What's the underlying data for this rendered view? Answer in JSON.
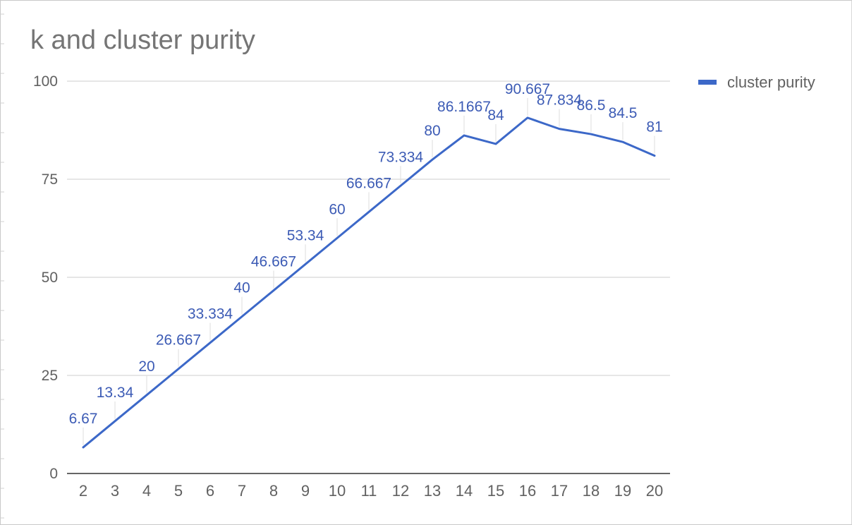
{
  "chart_data": {
    "type": "line",
    "title": "k and cluster purity",
    "xlabel": "",
    "ylabel": "",
    "x": [
      2,
      3,
      4,
      5,
      6,
      7,
      8,
      9,
      10,
      11,
      12,
      13,
      14,
      15,
      16,
      17,
      18,
      19,
      20
    ],
    "series": [
      {
        "name": "cluster purity",
        "color": "#3c68c8",
        "values": [
          6.67,
          13.34,
          20,
          26.667,
          33.334,
          40,
          46.667,
          53.34,
          60,
          66.667,
          73.334,
          80,
          86.1667,
          84,
          90.667,
          87.834,
          86.5,
          84.5,
          81
        ],
        "labels": [
          "6.67",
          "13.34",
          "20",
          "26.667",
          "33.334",
          "40",
          "46.667",
          "53.34",
          "60",
          "66.667",
          "73.334",
          "80",
          "86.1667",
          "84",
          "90.667",
          "87.834",
          "86.5",
          "84.5",
          "81"
        ]
      }
    ],
    "ylim": [
      0,
      100
    ],
    "yticks": [
      "0",
      "25",
      "50",
      "75",
      "100"
    ],
    "xticks": [
      "2",
      "3",
      "4",
      "5",
      "6",
      "7",
      "8",
      "9",
      "10",
      "11",
      "12",
      "13",
      "14",
      "15",
      "16",
      "17",
      "18",
      "19",
      "20"
    ],
    "grid": true,
    "legend": "right",
    "data_labels": true
  }
}
